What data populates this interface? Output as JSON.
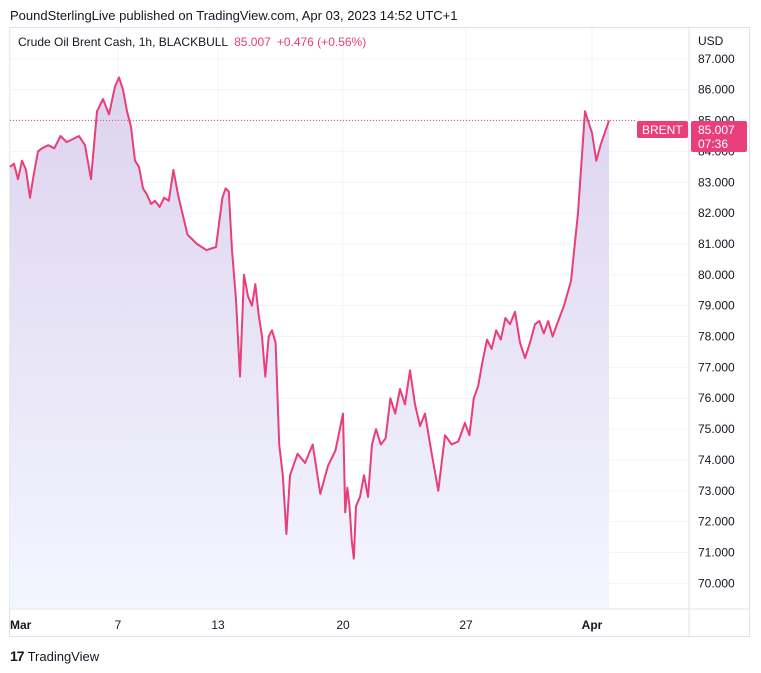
{
  "header": {
    "publisher_text": "PoundSterlingLive published on TradingView.com, Apr 03, 2023 14:52 UTC+1"
  },
  "legend": {
    "symbol": "Crude Oil Brent Cash, 1h, BLACKBULL",
    "last": "85.007",
    "change": "+0.476 (+0.56%)"
  },
  "axis": {
    "currency": "USD"
  },
  "price_tag": {
    "name": "BRENT",
    "price": "85.007",
    "countdown": "07:36"
  },
  "footer": {
    "brand": "TradingView"
  },
  "colors": {
    "line": "#e83e7a",
    "fill_top": "#ddd3ee",
    "fill_bottom": "#f3f6ff",
    "grid": "#f0f3fa"
  },
  "chart_data": {
    "type": "area",
    "title": "Crude Oil Brent Cash, 1h, BLACKBULL",
    "ylim": [
      69.2,
      88.0
    ],
    "y_ticks": [
      "70.000",
      "71.000",
      "72.000",
      "73.000",
      "74.000",
      "75.000",
      "76.000",
      "77.000",
      "78.000",
      "79.000",
      "80.000",
      "81.000",
      "82.000",
      "83.000",
      "84.000",
      "85.000",
      "86.000",
      "87.000"
    ],
    "x_ticks": [
      "Mar",
      "7",
      "13",
      "20",
      "27",
      "Apr"
    ],
    "series": [
      {
        "values": [
          [
            "Mar 1",
            83.5
          ],
          [
            "Mar 1",
            83.6
          ],
          [
            "Mar 1",
            83.1
          ],
          [
            "Mar 1",
            83.7
          ],
          [
            "Mar 2",
            83.4
          ],
          [
            "Mar 2",
            82.5
          ],
          [
            "Mar 2",
            83.3
          ],
          [
            "Mar 2",
            84.0
          ],
          [
            "Mar 3",
            84.1
          ],
          [
            "Mar 3",
            84.2
          ],
          [
            "Mar 3",
            84.1
          ],
          [
            "Mar 3",
            84.5
          ],
          [
            "Mar 3",
            84.3
          ],
          [
            "Mar 3",
            84.4
          ],
          [
            "Mar 6",
            84.5
          ],
          [
            "Mar 6",
            84.2
          ],
          [
            "Mar 6",
            83.1
          ],
          [
            "Mar 6",
            85.3
          ],
          [
            "Mar 6",
            85.7
          ],
          [
            "Mar 6",
            85.2
          ],
          [
            "Mar 7",
            86.1
          ],
          [
            "Mar 7",
            86.4
          ],
          [
            "Mar 7",
            86.0
          ],
          [
            "Mar 7",
            85.3
          ],
          [
            "Mar 7",
            84.8
          ],
          [
            "Mar 8",
            83.7
          ],
          [
            "Mar 8",
            83.5
          ],
          [
            "Mar 8",
            82.8
          ],
          [
            "Mar 8",
            82.6
          ],
          [
            "Mar 8",
            82.3
          ],
          [
            "Mar 9",
            82.4
          ],
          [
            "Mar 9",
            82.2
          ],
          [
            "Mar 9",
            82.5
          ],
          [
            "Mar 9",
            82.4
          ],
          [
            "Mar 9",
            83.4
          ],
          [
            "Mar 10",
            82.6
          ],
          [
            "Mar 10",
            81.3
          ],
          [
            "Mar 10",
            81.0
          ],
          [
            "Mar 10",
            80.8
          ],
          [
            "Mar 13",
            80.9
          ],
          [
            "Mar 13",
            81.7
          ],
          [
            "Mar 13",
            82.5
          ],
          [
            "Mar 13",
            82.8
          ],
          [
            "Mar 13",
            82.7
          ],
          [
            "Mar 14",
            80.8
          ],
          [
            "Mar 14",
            79.2
          ],
          [
            "Mar 14",
            76.7
          ],
          [
            "Mar 14",
            80.0
          ],
          [
            "Mar 14",
            79.3
          ],
          [
            "Mar 15",
            79.0
          ],
          [
            "Mar 15",
            79.7
          ],
          [
            "Mar 15",
            78.7
          ],
          [
            "Mar 15",
            78.0
          ],
          [
            "Mar 15",
            76.7
          ],
          [
            "Mar 15",
            78.0
          ],
          [
            "Mar 16",
            78.2
          ],
          [
            "Mar 16",
            77.8
          ],
          [
            "Mar 16",
            74.5
          ],
          [
            "Mar 16",
            73.5
          ],
          [
            "Mar 16",
            71.6
          ],
          [
            "Mar 17",
            73.5
          ],
          [
            "Mar 17",
            74.2
          ],
          [
            "Mar 17",
            73.9
          ],
          [
            "Mar 17",
            74.5
          ],
          [
            "Mar 17",
            72.9
          ],
          [
            "Mar 17",
            73.8
          ],
          [
            "Mar 17",
            74.3
          ],
          [
            "Mar 20",
            75.5
          ],
          [
            "Mar 20",
            72.3
          ],
          [
            "Mar 20",
            73.1
          ],
          [
            "Mar 20",
            72.5
          ],
          [
            "Mar 20",
            71.4
          ],
          [
            "Mar 20",
            70.8
          ],
          [
            "Mar 21",
            72.5
          ],
          [
            "Mar 21",
            72.8
          ],
          [
            "Mar 21",
            73.5
          ],
          [
            "Mar 21",
            72.8
          ],
          [
            "Mar 21",
            74.5
          ],
          [
            "Mar 22",
            75.0
          ],
          [
            "Mar 22",
            74.5
          ],
          [
            "Mar 22",
            74.7
          ],
          [
            "Mar 22",
            76.0
          ],
          [
            "Mar 22",
            75.5
          ],
          [
            "Mar 23",
            76.3
          ],
          [
            "Mar 23",
            75.8
          ],
          [
            "Mar 23",
            76.9
          ],
          [
            "Mar 23",
            75.8
          ],
          [
            "Mar 23",
            75.1
          ],
          [
            "Mar 24",
            75.5
          ],
          [
            "Mar 24",
            74.2
          ],
          [
            "Mar 24",
            73.0
          ],
          [
            "Mar 24",
            74.8
          ],
          [
            "Mar 24",
            74.5
          ],
          [
            "Mar 24",
            74.6
          ],
          [
            "Mar 27",
            75.2
          ],
          [
            "Mar 27",
            74.8
          ],
          [
            "Mar 27",
            76.0
          ],
          [
            "Mar 27",
            76.4
          ],
          [
            "Mar 27",
            77.2
          ],
          [
            "Mar 28",
            77.9
          ],
          [
            "Mar 28",
            77.6
          ],
          [
            "Mar 28",
            78.2
          ],
          [
            "Mar 28",
            77.9
          ],
          [
            "Mar 28",
            78.6
          ],
          [
            "Mar 29",
            78.4
          ],
          [
            "Mar 29",
            78.8
          ],
          [
            "Mar 29",
            77.8
          ],
          [
            "Mar 29",
            77.3
          ],
          [
            "Mar 29",
            77.8
          ],
          [
            "Mar 30",
            78.4
          ],
          [
            "Mar 30",
            78.5
          ],
          [
            "Mar 30",
            78.1
          ],
          [
            "Mar 30",
            78.5
          ],
          [
            "Mar 30",
            78.0
          ],
          [
            "Mar 31",
            78.4
          ],
          [
            "Mar 31",
            79.0
          ],
          [
            "Mar 31",
            79.8
          ],
          [
            "Mar 31",
            82.0
          ],
          [
            "Mar 31",
            85.3
          ],
          [
            "Apr 3",
            84.6
          ],
          [
            "Apr 3",
            83.7
          ],
          [
            "Apr 3",
            84.2
          ],
          [
            "Apr 3",
            85.0
          ]
        ]
      }
    ]
  }
}
